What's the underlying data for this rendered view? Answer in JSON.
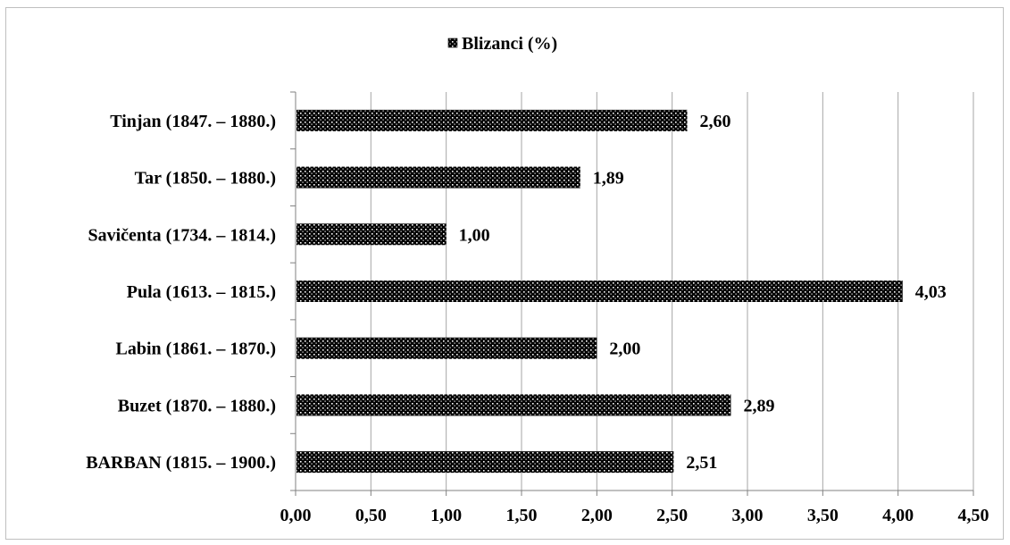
{
  "chart_data": {
    "type": "bar",
    "orientation": "horizontal",
    "legend": {
      "position": "top",
      "label": "Blizanci (%)"
    },
    "categories": [
      "BARBAN (1815. – 1900.)",
      "Buzet (1870. – 1880.)",
      "Labin (1861. – 1870.)",
      "Pula (1613. – 1815.)",
      "Savičenta (1734. – 1814.)",
      "Tar (1850. – 1880.)",
      "Tinjan (1847. – 1880.)"
    ],
    "series": [
      {
        "name": "Blizanci (%)",
        "values": [
          2.51,
          2.89,
          2.0,
          4.03,
          1.0,
          1.89,
          2.6
        ],
        "labels": [
          "2,51",
          "2,89",
          "2,00",
          "4,03",
          "1,00",
          "1,89",
          "2,60"
        ]
      }
    ],
    "xlim": [
      0,
      4.5
    ],
    "xticks": [
      0,
      0.5,
      1,
      1.5,
      2,
      2.5,
      3,
      3.5,
      4,
      4.5
    ],
    "xtick_labels": [
      "0,00",
      "0,50",
      "1,00",
      "1,50",
      "2,00",
      "2,50",
      "3,00",
      "3,50",
      "4,00",
      "4,50"
    ],
    "grid": {
      "vertical": true,
      "color": "#a6a6a6"
    },
    "bar_pattern": {
      "fill": "#000000",
      "dot": "#ffffff",
      "pattern": "dotted"
    }
  }
}
